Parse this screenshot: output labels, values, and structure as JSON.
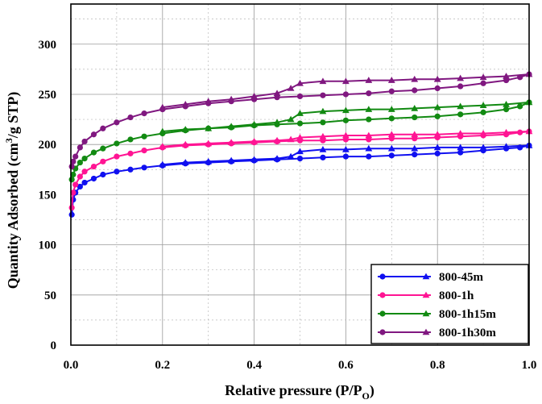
{
  "chart_data": {
    "type": "line",
    "xlabel": "Relative pressure (P/P",
    "xlabel_sub": "O",
    "xlabel_end": ")",
    "ylabel": "Quantity Adsorbed (cm",
    "ylabel_sup": "3",
    "ylabel_end": "/g STP)",
    "xlim": [
      0.0,
      1.0
    ],
    "ylim": [
      0,
      340
    ],
    "xticks": [
      "0.0",
      "0.2",
      "0.4",
      "0.6",
      "0.8",
      "1.0"
    ],
    "yticks": [
      "0",
      "50",
      "100",
      "150",
      "200",
      "250",
      "300"
    ],
    "grid": true,
    "legend_position": "bottom-right",
    "series": [
      {
        "name": "800-45m",
        "color": "#1010f0",
        "adsorption_marker": "circle",
        "desorption_marker": "triangle",
        "adsorption": [
          [
            0.002,
            130
          ],
          [
            0.005,
            145
          ],
          [
            0.01,
            152
          ],
          [
            0.02,
            158
          ],
          [
            0.03,
            162
          ],
          [
            0.05,
            166
          ],
          [
            0.07,
            170
          ],
          [
            0.1,
            173
          ],
          [
            0.13,
            175
          ],
          [
            0.16,
            177
          ],
          [
            0.2,
            179
          ],
          [
            0.25,
            181
          ],
          [
            0.3,
            182
          ],
          [
            0.35,
            183
          ],
          [
            0.4,
            184
          ],
          [
            0.45,
            185
          ],
          [
            0.5,
            186
          ],
          [
            0.55,
            187
          ],
          [
            0.6,
            188
          ],
          [
            0.65,
            188
          ],
          [
            0.7,
            189
          ],
          [
            0.75,
            190
          ],
          [
            0.8,
            191
          ],
          [
            0.85,
            192
          ],
          [
            0.9,
            194
          ],
          [
            0.95,
            196
          ],
          [
            0.98,
            197
          ],
          [
            1.0,
            199
          ]
        ],
        "desorption": [
          [
            1.0,
            199
          ],
          [
            0.95,
            198
          ],
          [
            0.9,
            197
          ],
          [
            0.85,
            197
          ],
          [
            0.8,
            197
          ],
          [
            0.75,
            196
          ],
          [
            0.7,
            196
          ],
          [
            0.65,
            196
          ],
          [
            0.6,
            195
          ],
          [
            0.55,
            195
          ],
          [
            0.5,
            193
          ],
          [
            0.48,
            188
          ],
          [
            0.45,
            186
          ],
          [
            0.4,
            185
          ],
          [
            0.35,
            184
          ],
          [
            0.3,
            183
          ],
          [
            0.25,
            182
          ],
          [
            0.2,
            180
          ]
        ]
      },
      {
        "name": "800-1h",
        "color": "#ff1493",
        "adsorption_marker": "circle",
        "desorption_marker": "triangle",
        "adsorption": [
          [
            0.002,
            137
          ],
          [
            0.005,
            152
          ],
          [
            0.01,
            160
          ],
          [
            0.02,
            168
          ],
          [
            0.03,
            173
          ],
          [
            0.05,
            178
          ],
          [
            0.07,
            183
          ],
          [
            0.1,
            188
          ],
          [
            0.13,
            191
          ],
          [
            0.16,
            194
          ],
          [
            0.2,
            197
          ],
          [
            0.25,
            199
          ],
          [
            0.3,
            200
          ],
          [
            0.35,
            201
          ],
          [
            0.4,
            202
          ],
          [
            0.45,
            203
          ],
          [
            0.5,
            204
          ],
          [
            0.55,
            204
          ],
          [
            0.6,
            205
          ],
          [
            0.65,
            205
          ],
          [
            0.7,
            206
          ],
          [
            0.75,
            206
          ],
          [
            0.8,
            207
          ],
          [
            0.85,
            208
          ],
          [
            0.9,
            209
          ],
          [
            0.95,
            210
          ],
          [
            0.98,
            212
          ],
          [
            1.0,
            213
          ]
        ],
        "desorption": [
          [
            1.0,
            213
          ],
          [
            0.95,
            212
          ],
          [
            0.9,
            211
          ],
          [
            0.85,
            211
          ],
          [
            0.8,
            210
          ],
          [
            0.75,
            210
          ],
          [
            0.7,
            210
          ],
          [
            0.65,
            209
          ],
          [
            0.6,
            209
          ],
          [
            0.55,
            208
          ],
          [
            0.5,
            207
          ],
          [
            0.48,
            205
          ],
          [
            0.45,
            204
          ],
          [
            0.4,
            203
          ],
          [
            0.35,
            202
          ],
          [
            0.3,
            201
          ],
          [
            0.25,
            200
          ],
          [
            0.2,
            198
          ]
        ]
      },
      {
        "name": "800-1h15m",
        "color": "#128a12",
        "adsorption_marker": "circle",
        "desorption_marker": "triangle",
        "adsorption": [
          [
            0.002,
            165
          ],
          [
            0.005,
            170
          ],
          [
            0.01,
            176
          ],
          [
            0.02,
            182
          ],
          [
            0.03,
            186
          ],
          [
            0.05,
            192
          ],
          [
            0.07,
            196
          ],
          [
            0.1,
            201
          ],
          [
            0.13,
            205
          ],
          [
            0.16,
            208
          ],
          [
            0.2,
            211
          ],
          [
            0.25,
            214
          ],
          [
            0.3,
            216
          ],
          [
            0.35,
            217
          ],
          [
            0.4,
            219
          ],
          [
            0.45,
            220
          ],
          [
            0.5,
            221
          ],
          [
            0.55,
            222
          ],
          [
            0.6,
            224
          ],
          [
            0.65,
            225
          ],
          [
            0.7,
            226
          ],
          [
            0.75,
            227
          ],
          [
            0.8,
            228
          ],
          [
            0.85,
            230
          ],
          [
            0.9,
            232
          ],
          [
            0.95,
            235
          ],
          [
            0.98,
            238
          ],
          [
            1.0,
            242
          ]
        ],
        "desorption": [
          [
            1.0,
            242
          ],
          [
            0.95,
            240
          ],
          [
            0.9,
            239
          ],
          [
            0.85,
            238
          ],
          [
            0.8,
            237
          ],
          [
            0.75,
            236
          ],
          [
            0.7,
            235
          ],
          [
            0.65,
            235
          ],
          [
            0.6,
            234
          ],
          [
            0.55,
            233
          ],
          [
            0.5,
            231
          ],
          [
            0.48,
            225
          ],
          [
            0.45,
            222
          ],
          [
            0.4,
            220
          ],
          [
            0.35,
            218
          ],
          [
            0.3,
            216
          ],
          [
            0.25,
            215
          ],
          [
            0.2,
            213
          ]
        ]
      },
      {
        "name": "800-1h30m",
        "color": "#801880",
        "adsorption_marker": "circle",
        "desorption_marker": "triangle",
        "adsorption": [
          [
            0.002,
            178
          ],
          [
            0.005,
            183
          ],
          [
            0.01,
            188
          ],
          [
            0.02,
            197
          ],
          [
            0.03,
            203
          ],
          [
            0.05,
            210
          ],
          [
            0.07,
            216
          ],
          [
            0.1,
            222
          ],
          [
            0.13,
            227
          ],
          [
            0.16,
            231
          ],
          [
            0.2,
            235
          ],
          [
            0.25,
            238
          ],
          [
            0.3,
            241
          ],
          [
            0.35,
            243
          ],
          [
            0.4,
            245
          ],
          [
            0.45,
            247
          ],
          [
            0.5,
            248
          ],
          [
            0.55,
            249
          ],
          [
            0.6,
            250
          ],
          [
            0.65,
            251
          ],
          [
            0.7,
            253
          ],
          [
            0.75,
            254
          ],
          [
            0.8,
            256
          ],
          [
            0.85,
            258
          ],
          [
            0.9,
            261
          ],
          [
            0.95,
            264
          ],
          [
            0.98,
            267
          ],
          [
            1.0,
            270
          ]
        ],
        "desorption": [
          [
            1.0,
            270
          ],
          [
            0.95,
            268
          ],
          [
            0.9,
            267
          ],
          [
            0.85,
            266
          ],
          [
            0.8,
            265
          ],
          [
            0.75,
            265
          ],
          [
            0.7,
            264
          ],
          [
            0.65,
            264
          ],
          [
            0.6,
            263
          ],
          [
            0.55,
            263
          ],
          [
            0.5,
            261
          ],
          [
            0.48,
            256
          ],
          [
            0.45,
            251
          ],
          [
            0.4,
            248
          ],
          [
            0.35,
            245
          ],
          [
            0.3,
            243
          ],
          [
            0.25,
            240
          ],
          [
            0.2,
            237
          ]
        ]
      }
    ]
  }
}
